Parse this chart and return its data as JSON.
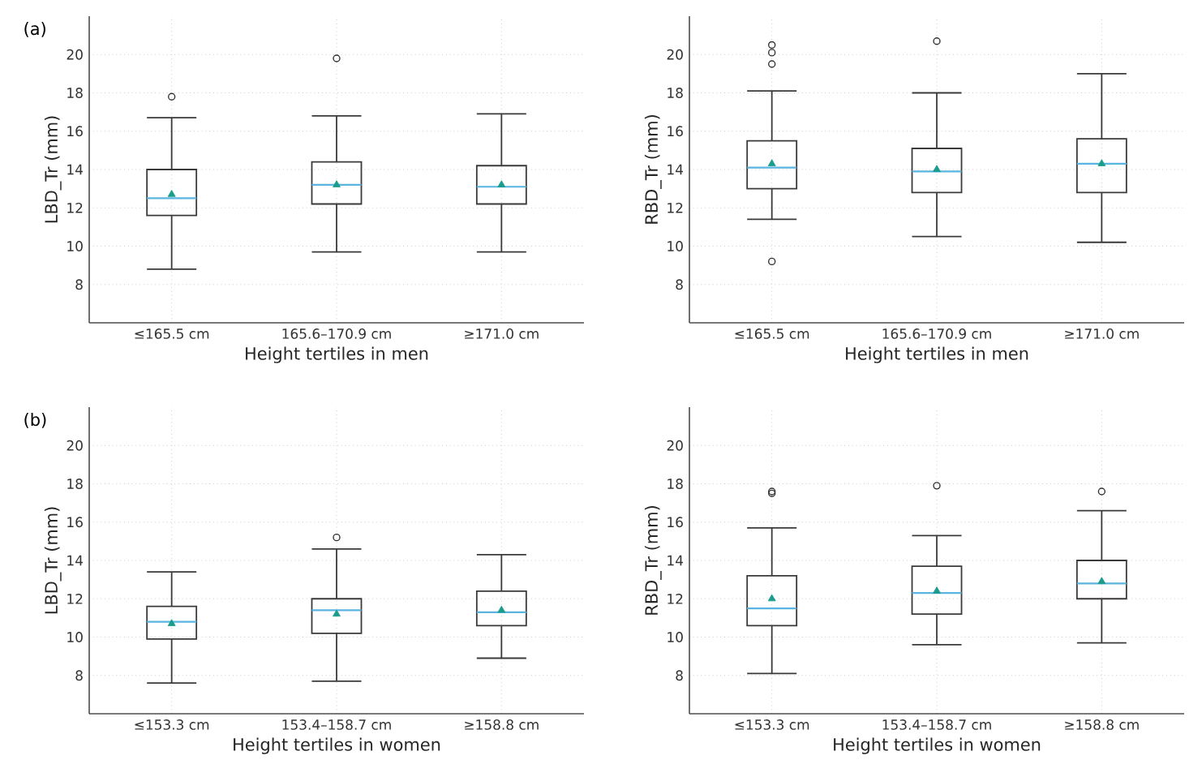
{
  "chart_data": [
    {
      "type": "box",
      "annotations": [
        "(a)"
      ],
      "categories": [
        "≤165.5 cm",
        "165.6–170.9 cm",
        "≥171.0 cm"
      ],
      "xlabel": "Height tertiles in men",
      "ylabel": "LBD_Tr (mm)",
      "ylim": [
        6,
        22
      ],
      "yticks": [
        8,
        10,
        12,
        14,
        16,
        18,
        20
      ],
      "grid": true,
      "series": [
        {
          "color": "#3a3a3a",
          "boxes": [
            {
              "low": 8.8,
              "q1": 11.6,
              "median": 12.5,
              "q3": 14.0,
              "high": 16.7,
              "mean": 12.7,
              "outliers": [
                17.8
              ]
            },
            {
              "low": 9.7,
              "q1": 12.2,
              "median": 13.2,
              "q3": 14.4,
              "high": 16.8,
              "mean": 13.2,
              "outliers": [
                19.8
              ]
            },
            {
              "low": 9.7,
              "q1": 12.2,
              "median": 13.1,
              "q3": 14.2,
              "high": 16.9,
              "mean": 13.2
            }
          ]
        }
      ]
    },
    {
      "type": "box",
      "categories": [
        "≤165.5 cm",
        "165.6–170.9 cm",
        "≥171.0 cm"
      ],
      "xlabel": "Height tertiles in men",
      "ylabel": "RBD_Tr (mm)",
      "ylim": [
        6,
        22
      ],
      "yticks": [
        8,
        10,
        12,
        14,
        16,
        18,
        20
      ],
      "grid": true,
      "series": [
        {
          "color": "#3a3a3a",
          "boxes": [
            {
              "low": 11.4,
              "q1": 13.0,
              "median": 14.1,
              "q3": 15.5,
              "high": 18.1,
              "mean": 14.3,
              "outliers": [
                9.2,
                19.5,
                20.1,
                20.5
              ]
            },
            {
              "low": 10.5,
              "q1": 12.8,
              "median": 13.9,
              "q3": 15.1,
              "high": 18.0,
              "mean": 14.0,
              "outliers": [
                20.7
              ]
            },
            {
              "low": 10.2,
              "q1": 12.8,
              "median": 14.3,
              "q3": 15.6,
              "high": 19.0,
              "mean": 14.3
            }
          ]
        }
      ]
    },
    {
      "type": "box",
      "annotations": [
        "(b)"
      ],
      "categories": [
        "≤153.3 cm",
        "153.4–158.7 cm",
        "≥158.8 cm"
      ],
      "xlabel": "Height tertiles in women",
      "ylabel": "LBD_Tr (mm)",
      "ylim": [
        6,
        22
      ],
      "yticks": [
        8,
        10,
        12,
        14,
        16,
        18,
        20
      ],
      "grid": true,
      "series": [
        {
          "color": "#3a3a3a",
          "boxes": [
            {
              "low": 7.6,
              "q1": 9.9,
              "median": 10.8,
              "q3": 11.6,
              "high": 13.4,
              "mean": 10.7
            },
            {
              "low": 7.7,
              "q1": 10.2,
              "median": 11.4,
              "q3": 12.0,
              "high": 14.6,
              "mean": 11.2,
              "outliers": [
                15.2
              ]
            },
            {
              "low": 8.9,
              "q1": 10.6,
              "median": 11.3,
              "q3": 12.4,
              "high": 14.3,
              "mean": 11.4
            }
          ]
        }
      ]
    },
    {
      "type": "box",
      "categories": [
        "≤153.3 cm",
        "153.4–158.7 cm",
        "≥158.8 cm"
      ],
      "xlabel": "Height tertiles in women",
      "ylabel": "RBD_Tr (mm)",
      "ylim": [
        6,
        22
      ],
      "yticks": [
        8,
        10,
        12,
        14,
        16,
        18,
        20
      ],
      "grid": true,
      "series": [
        {
          "color": "#3a3a3a",
          "boxes": [
            {
              "low": 8.1,
              "q1": 10.6,
              "median": 11.5,
              "q3": 13.2,
              "high": 15.7,
              "mean": 12.0,
              "outliers": [
                17.5,
                17.6
              ]
            },
            {
              "low": 9.6,
              "q1": 11.2,
              "median": 12.3,
              "q3": 13.7,
              "high": 15.3,
              "mean": 12.4,
              "outliers": [
                17.9
              ]
            },
            {
              "low": 9.7,
              "q1": 12.0,
              "median": 12.8,
              "q3": 14.0,
              "high": 16.6,
              "mean": 12.9,
              "outliers": [
                17.6
              ]
            }
          ]
        }
      ]
    }
  ]
}
